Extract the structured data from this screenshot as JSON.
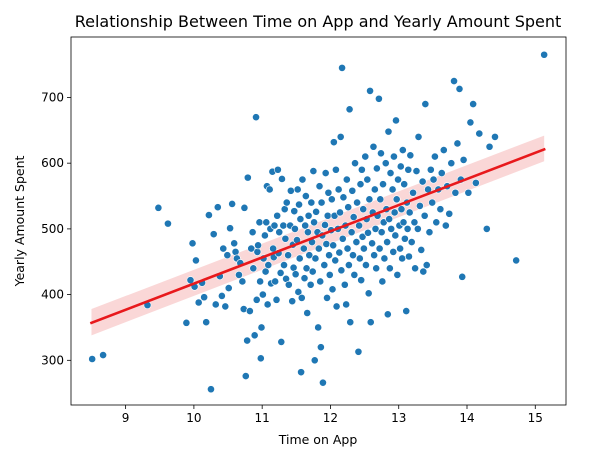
{
  "chart_data": {
    "type": "scatter",
    "title": "Relationship Between Time on App and Yearly Amount Spent",
    "xlabel": "Time on App",
    "ylabel": "Yearly Amount Spent",
    "xlim": [
      8.2,
      15.45
    ],
    "ylim": [
      232,
      792
    ],
    "xticks": [
      9,
      10,
      11,
      12,
      13,
      14,
      15
    ],
    "yticks": [
      300,
      400,
      500,
      600,
      700
    ],
    "grid": false,
    "legend": "none",
    "point_color": "#1f77b4",
    "regression": {
      "color": "#e8191c",
      "band_color": "#f4a6a6",
      "x": [
        8.5,
        15.13
      ],
      "y": [
        357,
        621
      ],
      "ci_lower": [
        338,
        603
      ],
      "ci_upper": [
        378,
        642
      ]
    },
    "points": [
      [
        8.51,
        302
      ],
      [
        8.67,
        308
      ],
      [
        9.32,
        384
      ],
      [
        9.48,
        532
      ],
      [
        9.62,
        508
      ],
      [
        9.89,
        357
      ],
      [
        9.95,
        422
      ],
      [
        9.98,
        478
      ],
      [
        10.01,
        412
      ],
      [
        10.03,
        452
      ],
      [
        10.07,
        388
      ],
      [
        10.12,
        418
      ],
      [
        10.15,
        396
      ],
      [
        10.18,
        358
      ],
      [
        10.22,
        521
      ],
      [
        10.25,
        256
      ],
      [
        10.29,
        492
      ],
      [
        10.32,
        385
      ],
      [
        10.35,
        533
      ],
      [
        10.38,
        428
      ],
      [
        10.41,
        398
      ],
      [
        10.43,
        470
      ],
      [
        10.46,
        382
      ],
      [
        10.49,
        460
      ],
      [
        10.51,
        410
      ],
      [
        10.53,
        501
      ],
      [
        10.56,
        538
      ],
      [
        10.59,
        478
      ],
      [
        10.61,
        465
      ],
      [
        10.63,
        455
      ],
      [
        10.66,
        430
      ],
      [
        10.68,
        448
      ],
      [
        10.71,
        420
      ],
      [
        10.73,
        378
      ],
      [
        10.74,
        532
      ],
      [
        10.76,
        276
      ],
      [
        10.78,
        330
      ],
      [
        10.79,
        578
      ],
      [
        10.82,
        375
      ],
      [
        10.84,
        470
      ],
      [
        10.86,
        495
      ],
      [
        10.87,
        440
      ],
      [
        10.89,
        338
      ],
      [
        10.91,
        670
      ],
      [
        10.92,
        392
      ],
      [
        10.93,
        465
      ],
      [
        10.94,
        475
      ],
      [
        10.96,
        510
      ],
      [
        10.97,
        420
      ],
      [
        10.98,
        303
      ],
      [
        10.99,
        350
      ],
      [
        11.01,
        400
      ],
      [
        11.02,
        455
      ],
      [
        11.04,
        490
      ],
      [
        11.05,
        435
      ],
      [
        11.06,
        510
      ],
      [
        11.07,
        565
      ],
      [
        11.08,
        385
      ],
      [
        11.09,
        445
      ],
      [
        11.11,
        560
      ],
      [
        11.12,
        500
      ],
      [
        11.13,
        417
      ],
      [
        11.15,
        587
      ],
      [
        11.16,
        470
      ],
      [
        11.17,
        457
      ],
      [
        11.18,
        505
      ],
      [
        11.19,
        420
      ],
      [
        11.21,
        392
      ],
      [
        11.22,
        520
      ],
      [
        11.23,
        590
      ],
      [
        11.24,
        463
      ],
      [
        11.25,
        495
      ],
      [
        11.27,
        433
      ],
      [
        11.28,
        328
      ],
      [
        11.29,
        576
      ],
      [
        11.31,
        505
      ],
      [
        11.32,
        445
      ],
      [
        11.33,
        530
      ],
      [
        11.34,
        485
      ],
      [
        11.35,
        424
      ],
      [
        11.36,
        540
      ],
      [
        11.38,
        460
      ],
      [
        11.39,
        415
      ],
      [
        11.41,
        505
      ],
      [
        11.42,
        558
      ],
      [
        11.44,
        390
      ],
      [
        11.45,
        476
      ],
      [
        11.46,
        441
      ],
      [
        11.47,
        527
      ],
      [
        11.48,
        500
      ],
      [
        11.49,
        431
      ],
      [
        11.51,
        483
      ],
      [
        11.52,
        560
      ],
      [
        11.53,
        404
      ],
      [
        11.54,
        537
      ],
      [
        11.55,
        455
      ],
      [
        11.56,
        515
      ],
      [
        11.57,
        282
      ],
      [
        11.58,
        395
      ],
      [
        11.59,
        575
      ],
      [
        11.61,
        470
      ],
      [
        11.62,
        425
      ],
      [
        11.63,
        505
      ],
      [
        11.64,
        550
      ],
      [
        11.65,
        440
      ],
      [
        11.66,
        372
      ],
      [
        11.67,
        495
      ],
      [
        11.68,
        520
      ],
      [
        11.69,
        460
      ],
      [
        11.71,
        415
      ],
      [
        11.72,
        540
      ],
      [
        11.73,
        480
      ],
      [
        11.74,
        435
      ],
      [
        11.75,
        588
      ],
      [
        11.76,
        510
      ],
      [
        11.77,
        300
      ],
      [
        11.78,
        455
      ],
      [
        11.79,
        526
      ],
      [
        11.81,
        495
      ],
      [
        11.82,
        350
      ],
      [
        11.83,
        470
      ],
      [
        11.84,
        565
      ],
      [
        11.85,
        420
      ],
      [
        11.86,
        320
      ],
      [
        11.87,
        540
      ],
      [
        11.88,
        490
      ],
      [
        11.89,
        266
      ],
      [
        11.91,
        445
      ],
      [
        11.92,
        506
      ],
      [
        11.93,
        585
      ],
      [
        11.94,
        477
      ],
      [
        11.95,
        395
      ],
      [
        11.96,
        520
      ],
      [
        11.97,
        555
      ],
      [
        11.98,
        460
      ],
      [
        11.99,
        430
      ],
      [
        12.01,
        498
      ],
      [
        12.02,
        545
      ],
      [
        12.03,
        408
      ],
      [
        12.04,
        475
      ],
      [
        12.05,
        632
      ],
      [
        12.06,
        520
      ],
      [
        12.07,
        452
      ],
      [
        12.08,
        590
      ],
      [
        12.09,
        382
      ],
      [
        12.11,
        500
      ],
      [
        12.12,
        560
      ],
      [
        12.13,
        464
      ],
      [
        12.14,
        525
      ],
      [
        12.15,
        640
      ],
      [
        12.16,
        437
      ],
      [
        12.17,
        745
      ],
      [
        12.18,
        485
      ],
      [
        12.19,
        548
      ],
      [
        12.21,
        415
      ],
      [
        12.22,
        505
      ],
      [
        12.23,
        385
      ],
      [
        12.24,
        575
      ],
      [
        12.25,
        470
      ],
      [
        12.26,
        533
      ],
      [
        12.27,
        445
      ],
      [
        12.28,
        682
      ],
      [
        12.29,
        358
      ],
      [
        12.31,
        495
      ],
      [
        12.32,
        558
      ],
      [
        12.33,
        460
      ],
      [
        12.34,
        518
      ],
      [
        12.35,
        430
      ],
      [
        12.36,
        600
      ],
      [
        12.38,
        480
      ],
      [
        12.39,
        540
      ],
      [
        12.41,
        313
      ],
      [
        12.42,
        505
      ],
      [
        12.43,
        455
      ],
      [
        12.44,
        568
      ],
      [
        12.45,
        422
      ],
      [
        12.46,
        590
      ],
      [
        12.47,
        488
      ],
      [
        12.48,
        530
      ],
      [
        12.49,
        470
      ],
      [
        12.51,
        610
      ],
      [
        12.52,
        445
      ],
      [
        12.53,
        515
      ],
      [
        12.54,
        575
      ],
      [
        12.55,
        494
      ],
      [
        12.56,
        402
      ],
      [
        12.57,
        545
      ],
      [
        12.58,
        710
      ],
      [
        12.59,
        358
      ],
      [
        12.61,
        478
      ],
      [
        12.62,
        525
      ],
      [
        12.63,
        625
      ],
      [
        12.64,
        460
      ],
      [
        12.65,
        560
      ],
      [
        12.66,
        500
      ],
      [
        12.67,
        440
      ],
      [
        12.68,
        592
      ],
      [
        12.69,
        520
      ],
      [
        12.71,
        698
      ],
      [
        12.72,
        470
      ],
      [
        12.73,
        545
      ],
      [
        12.74,
        615
      ],
      [
        12.75,
        495
      ],
      [
        12.76,
        420
      ],
      [
        12.77,
        568
      ],
      [
        12.78,
        510
      ],
      [
        12.79,
        455
      ],
      [
        12.81,
        600
      ],
      [
        12.82,
        530
      ],
      [
        12.83,
        480
      ],
      [
        12.84,
        370
      ],
      [
        12.85,
        648
      ],
      [
        12.86,
        515
      ],
      [
        12.87,
        440
      ],
      [
        12.88,
        585
      ],
      [
        12.89,
        500
      ],
      [
        12.91,
        560
      ],
      [
        12.92,
        465
      ],
      [
        12.93,
        610
      ],
      [
        12.94,
        525
      ],
      [
        12.95,
        490
      ],
      [
        12.96,
        665
      ],
      [
        12.97,
        545
      ],
      [
        12.98,
        430
      ],
      [
        12.99,
        575
      ],
      [
        13.01,
        505
      ],
      [
        13.02,
        470
      ],
      [
        13.03,
        595
      ],
      [
        13.04,
        530
      ],
      [
        13.05,
        455
      ],
      [
        13.06,
        620
      ],
      [
        13.07,
        510
      ],
      [
        13.08,
        568
      ],
      [
        13.09,
        485
      ],
      [
        13.11,
        375
      ],
      [
        13.12,
        540
      ],
      [
        13.13,
        500
      ],
      [
        13.14,
        590
      ],
      [
        13.15,
        458
      ],
      [
        13.16,
        525
      ],
      [
        13.17,
        612
      ],
      [
        13.19,
        480
      ],
      [
        13.21,
        555
      ],
      [
        13.23,
        510
      ],
      [
        13.24,
        440
      ],
      [
        13.26,
        588
      ],
      [
        13.28,
        500
      ],
      [
        13.29,
        640
      ],
      [
        13.31,
        535
      ],
      [
        13.33,
        468
      ],
      [
        13.35,
        572
      ],
      [
        13.36,
        435
      ],
      [
        13.38,
        520
      ],
      [
        13.39,
        690
      ],
      [
        13.41,
        445
      ],
      [
        13.43,
        560
      ],
      [
        13.45,
        495
      ],
      [
        13.47,
        590
      ],
      [
        13.49,
        540
      ],
      [
        13.51,
        575
      ],
      [
        13.53,
        610
      ],
      [
        13.55,
        510
      ],
      [
        13.58,
        560
      ],
      [
        13.61,
        530
      ],
      [
        13.63,
        585
      ],
      [
        13.66,
        620
      ],
      [
        13.69,
        505
      ],
      [
        13.71,
        565
      ],
      [
        13.74,
        523
      ],
      [
        13.77,
        600
      ],
      [
        13.81,
        725
      ],
      [
        13.83,
        555
      ],
      [
        13.86,
        630
      ],
      [
        13.89,
        713
      ],
      [
        13.91,
        575
      ],
      [
        13.93,
        427
      ],
      [
        13.95,
        605
      ],
      [
        14.02,
        555
      ],
      [
        14.05,
        662
      ],
      [
        14.09,
        690
      ],
      [
        14.13,
        570
      ],
      [
        14.18,
        645
      ],
      [
        14.29,
        500
      ],
      [
        14.33,
        625
      ],
      [
        14.41,
        640
      ],
      [
        14.72,
        452
      ],
      [
        15.13,
        765
      ]
    ]
  }
}
